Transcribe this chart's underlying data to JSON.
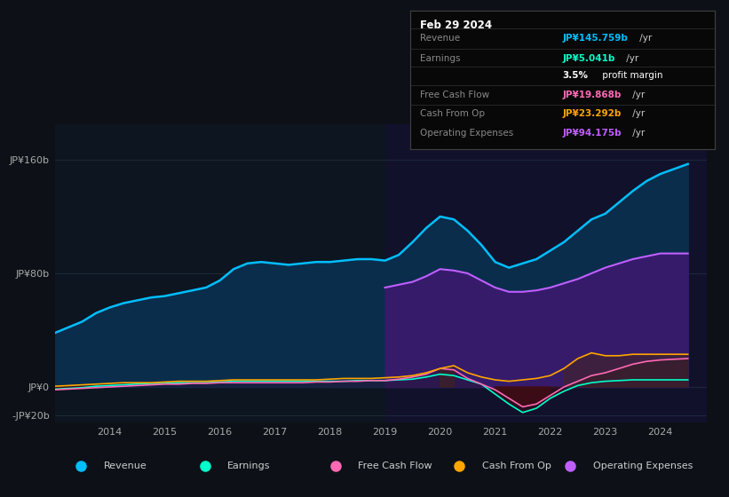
{
  "bg_color": "#0d1117",
  "plot_bg_color": "#0d1520",
  "grid_color": "#1e2d3d",
  "revenue_color": "#00bfff",
  "earnings_color": "#00ffcc",
  "fcf_color": "#ff69b4",
  "cfo_color": "#ffa500",
  "opex_color": "#bf5fff",
  "revenue_fill": "#0a3050",
  "opex_fill": "#3a1a6e",
  "highlight_fill": "#151030",
  "ylim": [
    -25,
    185
  ],
  "ytick_vals": [
    -20,
    0,
    80,
    160
  ],
  "ytick_labels": [
    "-JP¥20b",
    "JP¥0",
    "JP¥80b",
    "JP¥160b"
  ],
  "xlim_left": 2013.0,
  "xlim_right": 2024.85,
  "xtick_years": [
    2014,
    2015,
    2016,
    2017,
    2018,
    2019,
    2020,
    2021,
    2022,
    2023,
    2024
  ],
  "highlight_start": 2019.0,
  "legend_items": [
    {
      "label": "Revenue",
      "color": "#00bfff"
    },
    {
      "label": "Earnings",
      "color": "#00ffcc"
    },
    {
      "label": "Free Cash Flow",
      "color": "#ff69b4"
    },
    {
      "label": "Cash From Op",
      "color": "#ffa500"
    },
    {
      "label": "Operating Expenses",
      "color": "#bf5fff"
    }
  ],
  "info_date": "Feb 29 2024",
  "info_rows": [
    {
      "label": "Revenue",
      "value": "JP¥145.759b",
      "suffix": " /yr",
      "color": "#00bfff",
      "bold_prefix": null
    },
    {
      "label": "Earnings",
      "value": "JP¥5.041b",
      "suffix": " /yr",
      "color": "#00ffcc",
      "bold_prefix": null
    },
    {
      "label": "",
      "value": "3.5%",
      "suffix": " profit margin",
      "color": "#ffffff",
      "bold_prefix": "3.5%"
    },
    {
      "label": "Free Cash Flow",
      "value": "JP¥19.868b",
      "suffix": " /yr",
      "color": "#ff69b4",
      "bold_prefix": null
    },
    {
      "label": "Cash From Op",
      "value": "JP¥23.292b",
      "suffix": " /yr",
      "color": "#ffa500",
      "bold_prefix": null
    },
    {
      "label": "Operating Expenses",
      "value": "JP¥94.175b",
      "suffix": " /yr",
      "color": "#bf5fff",
      "bold_prefix": null
    }
  ],
  "x": [
    2013.0,
    2013.25,
    2013.5,
    2013.75,
    2014.0,
    2014.25,
    2014.5,
    2014.75,
    2015.0,
    2015.25,
    2015.5,
    2015.75,
    2016.0,
    2016.25,
    2016.5,
    2016.75,
    2017.0,
    2017.25,
    2017.5,
    2017.75,
    2018.0,
    2018.25,
    2018.5,
    2018.75,
    2019.0,
    2019.25,
    2019.5,
    2019.75,
    2020.0,
    2020.25,
    2020.5,
    2020.75,
    2021.0,
    2021.25,
    2021.5,
    2021.75,
    2022.0,
    2022.25,
    2022.5,
    2022.75,
    2023.0,
    2023.25,
    2023.5,
    2023.75,
    2024.0,
    2024.5
  ],
  "revenue": [
    38,
    42,
    46,
    52,
    56,
    59,
    61,
    63,
    64,
    66,
    68,
    70,
    75,
    83,
    87,
    88,
    87,
    86,
    87,
    88,
    88,
    89,
    90,
    90,
    89,
    93,
    102,
    112,
    120,
    118,
    110,
    100,
    88,
    84,
    87,
    90,
    96,
    102,
    110,
    118,
    122,
    130,
    138,
    145,
    150,
    157
  ],
  "earnings": [
    -1.5,
    -1,
    -0.5,
    0.5,
    1,
    1.5,
    2,
    2.5,
    2.5,
    3,
    3,
    3,
    3.5,
    4,
    4,
    4,
    4,
    4,
    4,
    4,
    4,
    4,
    4.5,
    4.5,
    4.5,
    5,
    5.5,
    7,
    9,
    8,
    5,
    2,
    -5,
    -12,
    -18,
    -15,
    -8,
    -3,
    1,
    3,
    4,
    4.5,
    5,
    5,
    5,
    5
  ],
  "free_cash_flow": [
    -2,
    -1.5,
    -1,
    -0.5,
    0,
    0.5,
    1,
    1.5,
    2,
    2,
    2.5,
    2.5,
    3,
    3,
    3,
    3,
    3,
    3,
    3,
    3.5,
    3.5,
    4,
    4,
    4.5,
    4.5,
    5.5,
    7,
    9,
    13,
    12,
    6,
    2,
    -2,
    -8,
    -14,
    -12,
    -6,
    0,
    4,
    8,
    10,
    13,
    16,
    18,
    19,
    20
  ],
  "cash_from_op": [
    0.5,
    1,
    1.5,
    2,
    2.5,
    3,
    3,
    3,
    3.5,
    4,
    4,
    4,
    4.5,
    5,
    5,
    5,
    5,
    5,
    5,
    5,
    5.5,
    6,
    6,
    6,
    6.5,
    7,
    8,
    10,
    13,
    15,
    10,
    7,
    5,
    4,
    5,
    6,
    8,
    13,
    20,
    24,
    22,
    22,
    23,
    23,
    23,
    23
  ],
  "op_expenses": [
    0,
    0,
    0,
    0,
    0,
    0,
    0,
    0,
    0,
    0,
    0,
    0,
    0,
    0,
    0,
    0,
    0,
    0,
    0,
    0,
    0,
    0,
    0,
    0,
    70,
    72,
    74,
    78,
    83,
    82,
    80,
    75,
    70,
    67,
    67,
    68,
    70,
    73,
    76,
    80,
    84,
    87,
    90,
    92,
    94,
    94
  ]
}
